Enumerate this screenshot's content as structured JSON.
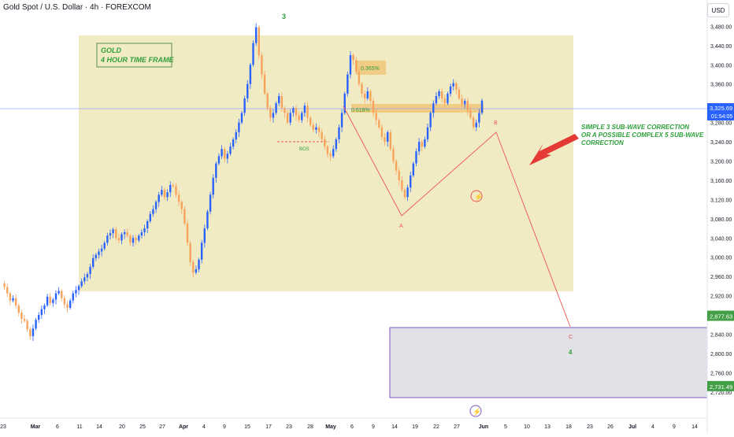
{
  "header": {
    "title": "Gold Spot / U.S. Dollar · 4h · FOREXCOM",
    "currency": "USD"
  },
  "annotations": {
    "box_line1": "GOLD",
    "box_line2": "4 HOUR TIME FRAME",
    "fib_0618": "0.618%",
    "fib_0365": "0.365%",
    "bos": "BOS",
    "wave_3": "3",
    "wave_a": "A",
    "wave_b": "B",
    "wave_c": "C",
    "wave_4": "4",
    "note_1": "SIMPLE 3 SUB-WAVE CORRECTION",
    "note_2": "OR A POSSIBLE COMPLEX 5 SUB-WAVE",
    "note_3": "CORRECTION"
  },
  "price_tag": {
    "price": "3,325.69",
    "countdown": "01:54:05"
  },
  "colors": {
    "up": "#2962ff",
    "down": "#f7a35c",
    "zone": "#e8e0a8",
    "wave_label": "#2e9f3a",
    "red": "#ef5350",
    "target_box": "#7e57c2",
    "green_tag": "#43a047",
    "current_tag": "#2962ff"
  },
  "chart_data": {
    "type": "candlestick",
    "y_ticks": [
      "3,480.00",
      "3,440.00",
      "3,400.00",
      "3,360.00",
      "3,280.00",
      "3,240.00",
      "3,200.00",
      "3,160.00",
      "3,120.00",
      "3,080.00",
      "3,040.00",
      "3,000.00",
      "2,960.00",
      "2,920.00",
      "2,880.00",
      "2,840.00",
      "2,800.00",
      "2,760.00",
      "2,720.00"
    ],
    "x_ticks": [
      "23",
      "Mar",
      "6",
      "11",
      "14",
      "20",
      "25",
      "27",
      "Apr",
      "4",
      "9",
      "15",
      "17",
      "23",
      "28",
      "May",
      "6",
      "9",
      "14",
      "19",
      "22",
      "27",
      "Jun",
      "5",
      "10",
      "13",
      "18",
      "23",
      "26",
      "Jul",
      "4",
      "9",
      "14"
    ],
    "levels": [
      {
        "label": "2,877.63",
        "value": 2877.63
      },
      {
        "label": "2,731.49",
        "value": 2731.49
      }
    ],
    "ylim": [
      2705,
      3515
    ],
    "close_path": [
      2945,
      2938,
      2925,
      2910,
      2915,
      2900,
      2885,
      2872,
      2868,
      2850,
      2836,
      2852,
      2870,
      2880,
      2892,
      2900,
      2918,
      2905,
      2912,
      2925,
      2930,
      2915,
      2902,
      2895,
      2910,
      2925,
      2932,
      2940,
      2950,
      2958,
      2965,
      2980,
      2998,
      3005,
      3012,
      3018,
      3030,
      3045,
      3050,
      3058,
      3040,
      3035,
      3048,
      3052,
      3045,
      3030,
      3040,
      3035,
      3045,
      3052,
      3060,
      3075,
      3090,
      3100,
      3115,
      3130,
      3140,
      3125,
      3135,
      3150,
      3148,
      3130,
      3115,
      3100,
      3070,
      3030,
      2990,
      2968,
      2975,
      2995,
      3030,
      3060,
      3095,
      3130,
      3165,
      3195,
      3210,
      3225,
      3205,
      3215,
      3230,
      3245,
      3260,
      3280,
      3300,
      3330,
      3360,
      3400,
      3445,
      3478,
      3420,
      3380,
      3340,
      3310,
      3290,
      3300,
      3320,
      3335,
      3310,
      3300,
      3280,
      3300,
      3310,
      3295,
      3285,
      3300,
      3315,
      3290,
      3275,
      3265,
      3270,
      3260,
      3245,
      3230,
      3215,
      3210,
      3225,
      3245,
      3270,
      3300,
      3340,
      3380,
      3420,
      3410,
      3385,
      3360,
      3340,
      3330,
      3345,
      3325,
      3300,
      3285,
      3270,
      3250,
      3240,
      3260,
      3225,
      3200,
      3180,
      3160,
      3140,
      3125,
      3145,
      3170,
      3195,
      3220,
      3240,
      3230,
      3245,
      3270,
      3300,
      3320,
      3335,
      3345,
      3330,
      3320,
      3340,
      3355,
      3362,
      3348,
      3330,
      3318,
      3325,
      3305,
      3290,
      3270,
      3280,
      3300,
      3325.69
    ]
  }
}
